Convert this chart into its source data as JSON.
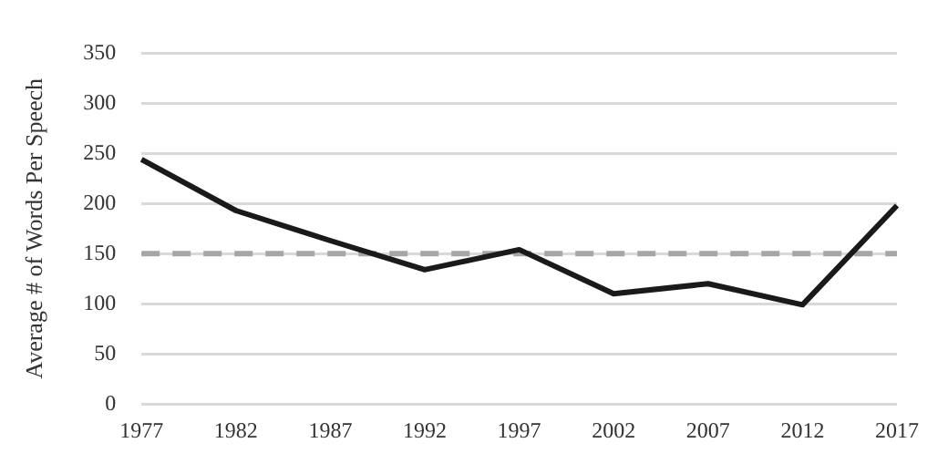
{
  "chart_data": {
    "type": "line",
    "ylabel": "Average # of Words Per Speech",
    "categories": [
      "1977",
      "1982",
      "1987",
      "1992",
      "1997",
      "2002",
      "2007",
      "2012",
      "2017"
    ],
    "series": [
      {
        "color": "#1a1a1a",
        "values": [
          244,
          193,
          163,
          134,
          154,
          110,
          120,
          99,
          198
        ]
      },
      {
        "color": "#a6a6a6",
        "line_style": "dashed",
        "values": [
          150,
          150,
          150,
          150,
          150,
          150,
          150,
          150,
          150
        ]
      }
    ],
    "ylim": [
      0,
      350
    ],
    "yticks": [
      0,
      50,
      100,
      150,
      200,
      250,
      300,
      350
    ],
    "grid": "y",
    "legend": false,
    "marker": "none"
  }
}
